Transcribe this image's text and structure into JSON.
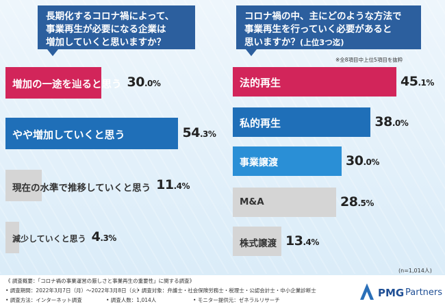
{
  "colors": {
    "red": "#d2255a",
    "blue": "#1f6fb8",
    "blue2": "#2a8fd6",
    "gray": "#d5d5d5",
    "header": "#2c5f9e"
  },
  "left_question": {
    "lines": [
      "長期化するコロナ禍によって、",
      "事業再生が必要になる企業は",
      "増加していくと思いますか？"
    ]
  },
  "right_question": {
    "lines": [
      "コロナ禍の中、主にどのような方法で",
      "事業再生を行っていく必要があると"
    ],
    "line3": "思いますか？",
    "line3_sub": "(上位3つ迄)"
  },
  "right_note": "※全8項目中上位5項目を抜粋",
  "n_note": "(n=1,014人)",
  "chart_data": [
    {
      "type": "bar",
      "orientation": "horizontal",
      "title": "長期化するコロナ禍によって、事業再生が必要になる企業は増加していくと思いますか？",
      "categories": [
        "増加の一途を辿ると思う",
        "やや増加していくと思う",
        "現在の水準で推移していくと思う",
        "減少していくと思う"
      ],
      "values": [
        30.0,
        54.3,
        11.4,
        4.3
      ],
      "pct_parts": [
        [
          "30",
          ".0%"
        ],
        [
          "54",
          ".3%"
        ],
        [
          "11",
          ".4%"
        ],
        [
          "4",
          ".3%"
        ]
      ],
      "xlim": [
        0,
        100
      ]
    },
    {
      "type": "bar",
      "orientation": "horizontal",
      "title": "コロナ禍の中、主にどのような方法で事業再生を行っていく必要があると思いますか？(上位3つ迄)",
      "categories": [
        "法的再生",
        "私的再生",
        "事業譲渡",
        "M&A",
        "株式譲渡"
      ],
      "values": [
        45.1,
        38.0,
        30.0,
        28.5,
        13.4
      ],
      "pct_parts": [
        [
          "45",
          ".1%"
        ],
        [
          "38",
          ".0%"
        ],
        [
          "30",
          ".0%"
        ],
        [
          "28",
          ".5%"
        ],
        [
          "13",
          ".4%"
        ]
      ],
      "xlim": [
        0,
        100
      ]
    }
  ],
  "footer": {
    "lines": [
      "《 調査概要：「コロナ禍の事業運営の厳しさと事業再生の重要性」に関する調査》",
      "• 調査期間：2022年3月7日（月）〜2022年3月8日（火）",
      "• 調査対象：弁護士・社会保険労務士・税理士・公認会計士・中小企業診断士",
      "• 調査方法：インターネット調査",
      "• 調査人数：1,014人",
      "• モニター提供元：ゼネラルリサーチ"
    ],
    "logo_main": "PMG",
    "logo_sub": "Partners"
  }
}
